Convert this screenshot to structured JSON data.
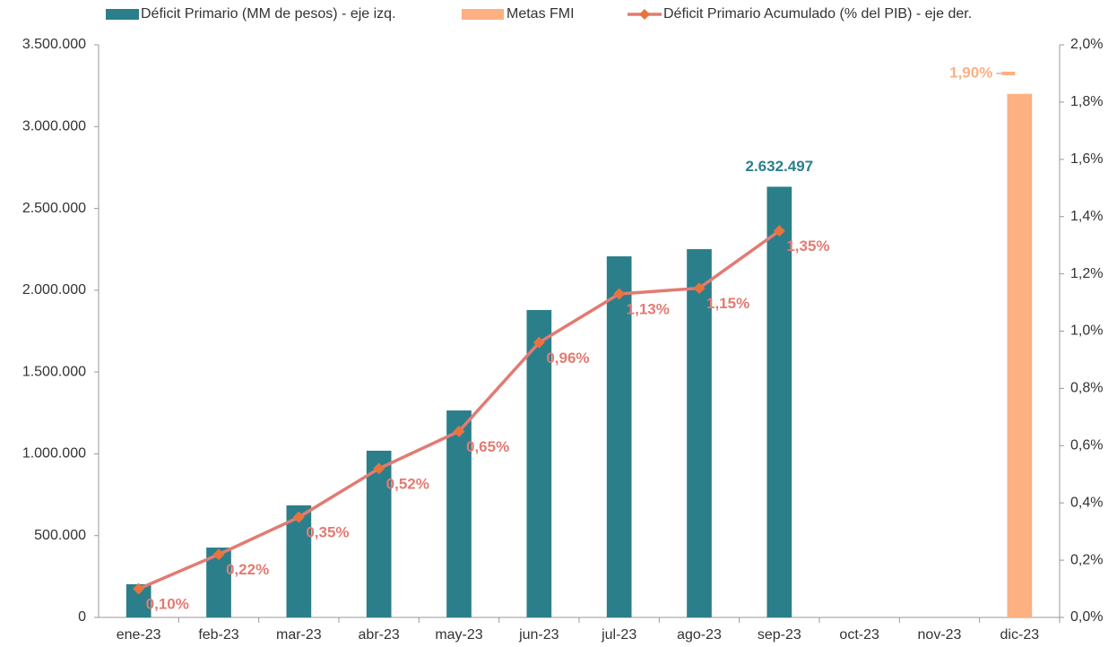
{
  "chart_data": {
    "type": "bar-line",
    "categories": [
      "ene-23",
      "feb-23",
      "mar-23",
      "abr-23",
      "may-23",
      "jun-23",
      "jul-23",
      "ago-23",
      "sep-23",
      "oct-23",
      "nov-23",
      "dic-23"
    ],
    "series": [
      {
        "name": "Déficit Primario (MM de pesos) - eje izq.",
        "type": "bar",
        "color": "#2a7f8a",
        "values": [
          203000,
          427000,
          685000,
          1019000,
          1265000,
          1879000,
          2207000,
          2251000,
          2632497,
          null,
          null,
          null
        ],
        "value_labels": [
          null,
          null,
          null,
          null,
          null,
          null,
          null,
          null,
          "2.632.497",
          null,
          null,
          null
        ]
      },
      {
        "name": "Metas FMI",
        "type": "bar",
        "color": "#fdb082",
        "values": [
          null,
          null,
          null,
          null,
          null,
          null,
          null,
          null,
          null,
          null,
          null,
          3200000
        ],
        "y2_values": [
          null,
          null,
          null,
          null,
          null,
          null,
          null,
          null,
          null,
          null,
          null,
          1.9
        ],
        "y2_value_labels": [
          null,
          null,
          null,
          null,
          null,
          null,
          null,
          null,
          null,
          null,
          null,
          "1,90%"
        ]
      },
      {
        "name": "Déficit Primario Acumulado (% del PIB) - eje der.",
        "type": "line",
        "axis": "y2",
        "color": "#e27b72",
        "marker_color": "#e8733f",
        "values": [
          0.1,
          0.22,
          0.35,
          0.52,
          0.65,
          0.96,
          1.13,
          1.15,
          1.35,
          null,
          null,
          null
        ],
        "value_labels": [
          "0,10%",
          "0,22%",
          "0,35%",
          "0,52%",
          "0,65%",
          "0,96%",
          "1,13%",
          "1,15%",
          "1,35%",
          null,
          null,
          null
        ]
      }
    ],
    "ylim": [
      0,
      3500000
    ],
    "yticks": [
      0,
      {
        "value": 500000,
        "label": "500.000"
      },
      {
        "value": 1000000,
        "label": "1.000.000"
      },
      {
        "value": 1500000,
        "label": "1.500.000"
      },
      {
        "value": 2000000,
        "label": "2.000.000"
      },
      {
        "value": 2500000,
        "label": "2.500.000"
      },
      {
        "value": 3000000,
        "label": "3.000.000"
      },
      {
        "value": 3500000,
        "label": "3.500.000"
      }
    ],
    "y2lim": [
      0,
      2.0
    ],
    "y2ticks": [
      {
        "value": 0,
        "label": "0,0%"
      },
      {
        "value": 0.2,
        "label": "0,2%"
      },
      {
        "value": 0.4,
        "label": "0,4%"
      },
      {
        "value": 0.6,
        "label": "0,6%"
      },
      {
        "value": 0.8,
        "label": "0,8%"
      },
      {
        "value": 1.0,
        "label": "1,0%"
      },
      {
        "value": 1.2,
        "label": "1,2%"
      },
      {
        "value": 1.4,
        "label": "1,4%"
      },
      {
        "value": 1.6,
        "label": "1,6%"
      },
      {
        "value": 1.8,
        "label": "1,8%"
      },
      {
        "value": 2.0,
        "label": "2,0%"
      }
    ],
    "legend": "top",
    "grid": false
  }
}
